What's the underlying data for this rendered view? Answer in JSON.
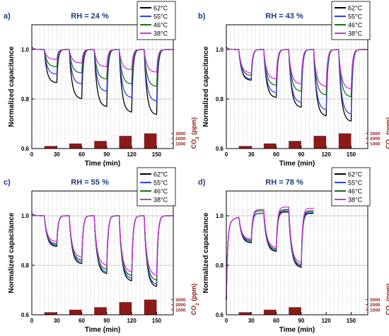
{
  "colors": {
    "62C": "#000000",
    "55C": "#3344dd",
    "46C": "#1f6b1f",
    "38C": "#cc33dd",
    "co2_bar": "#8b1a1a",
    "co2_axis": "#8b1a1a"
  },
  "chart_data": [
    {
      "type": "line",
      "panel_label": "a)",
      "title": "RH = 24 %",
      "xlabel": "Time (min)",
      "ylabel": "Normalized capacitance",
      "y2label": "CO2 (ppm)",
      "xlim": [
        0,
        170
      ],
      "ylim": [
        0.6,
        1.1
      ],
      "xticks": [
        0,
        30,
        60,
        90,
        120,
        150
      ],
      "yticks": [
        "0.6",
        "0.8",
        "1.0"
      ],
      "y2ticks": [
        "1000",
        "2000",
        "3000"
      ],
      "grid": true,
      "legend_position": "top-right",
      "co2_pulses": [
        {
          "start": 15,
          "end": 30,
          "ppm": 500
        },
        {
          "start": 45,
          "end": 60,
          "ppm": 1000
        },
        {
          "start": 75,
          "end": 90,
          "ppm": 1500
        },
        {
          "start": 105,
          "end": 120,
          "ppm": 2500
        },
        {
          "start": 135,
          "end": 150,
          "ppm": 3000
        }
      ],
      "series": [
        {
          "name": "62°C",
          "color_key": "62C",
          "dips": [
            0.865,
            0.8,
            0.768,
            0.745,
            0.735
          ]
        },
        {
          "name": "55°C",
          "color_key": "55C",
          "dips": [
            0.9,
            0.86,
            0.83,
            0.805,
            0.79
          ]
        },
        {
          "name": "46°C",
          "color_key": "46C",
          "dips": [
            0.93,
            0.905,
            0.88,
            0.86,
            0.85
          ]
        },
        {
          "name": "38°C",
          "color_key": "38C",
          "dips": [
            0.96,
            0.945,
            0.93,
            0.918,
            0.908
          ]
        }
      ]
    },
    {
      "type": "line",
      "panel_label": "b)",
      "title": "RH = 43 %",
      "xlabel": "Time (min)",
      "ylabel": "Normalized capacitance",
      "y2label": "CO2 (ppm)",
      "xlim": [
        0,
        170
      ],
      "ylim": [
        0.6,
        1.1
      ],
      "xticks": [
        0,
        30,
        60,
        90,
        120,
        150
      ],
      "yticks": [
        "0.6",
        "0.8",
        "1.0"
      ],
      "y2ticks": [
        "1000",
        "2000",
        "3000"
      ],
      "grid": true,
      "legend_position": "top-right",
      "co2_pulses": [
        {
          "start": 15,
          "end": 30,
          "ppm": 500
        },
        {
          "start": 45,
          "end": 60,
          "ppm": 1000
        },
        {
          "start": 75,
          "end": 90,
          "ppm": 1500
        },
        {
          "start": 105,
          "end": 120,
          "ppm": 2500
        },
        {
          "start": 135,
          "end": 150,
          "ppm": 3000
        }
      ],
      "series": [
        {
          "name": "62°C",
          "color_key": "62C",
          "dips": [
            0.875,
            0.805,
            0.765,
            0.73,
            0.708
          ]
        },
        {
          "name": "55°C",
          "color_key": "55C",
          "dips": [
            0.88,
            0.825,
            0.785,
            0.755,
            0.738
          ]
        },
        {
          "name": "46°C",
          "color_key": "46C",
          "dips": [
            0.895,
            0.855,
            0.83,
            0.815,
            0.808
          ]
        },
        {
          "name": "38°C",
          "color_key": "38C",
          "dips": [
            0.905,
            0.88,
            0.86,
            0.85,
            0.84
          ]
        }
      ]
    },
    {
      "type": "line",
      "panel_label": "c)",
      "title": "RH = 55 %",
      "xlabel": "Time (min)",
      "ylabel": "Normalized capacitance",
      "y2label": "CO2 (ppm)",
      "xlim": [
        0,
        170
      ],
      "ylim": [
        0.6,
        1.1
      ],
      "xticks": [
        0,
        30,
        60,
        90,
        120,
        150
      ],
      "yticks": [
        "0.6",
        "0.8",
        "1.0"
      ],
      "y2ticks": [
        "1000",
        "2000",
        "3000"
      ],
      "grid": true,
      "legend_position": "top-right",
      "co2_pulses": [
        {
          "start": 15,
          "end": 30,
          "ppm": 500
        },
        {
          "start": 45,
          "end": 60,
          "ppm": 1000
        },
        {
          "start": 75,
          "end": 90,
          "ppm": 1500
        },
        {
          "start": 105,
          "end": 120,
          "ppm": 2500
        },
        {
          "start": 135,
          "end": 150,
          "ppm": 3000
        }
      ],
      "series": [
        {
          "name": "62°C",
          "color_key": "62C",
          "dips": [
            0.875,
            0.805,
            0.765,
            0.735,
            0.712
          ]
        },
        {
          "name": "55°C",
          "color_key": "55C",
          "dips": [
            0.88,
            0.812,
            0.772,
            0.745,
            0.722
          ]
        },
        {
          "name": "46°C",
          "color_key": "46C",
          "dips": [
            0.885,
            0.82,
            0.782,
            0.756,
            0.738
          ]
        },
        {
          "name": "38°C",
          "color_key": "38C",
          "dips": [
            0.895,
            0.832,
            0.8,
            0.772,
            0.758
          ]
        }
      ]
    },
    {
      "type": "line",
      "panel_label": "d)",
      "title": "RH = 78 %",
      "xlabel": "Time (min)",
      "ylabel": "Normalized capacitance",
      "y2label": "CO2 (ppm)",
      "xlim": [
        0,
        170
      ],
      "ylim": [
        0.6,
        1.1
      ],
      "xticks": [
        0,
        30,
        60,
        90,
        120,
        150
      ],
      "yticks": [
        "0.6",
        "0.8",
        "1.0"
      ],
      "y2ticks": [
        "1000",
        "2000",
        "3000"
      ],
      "grid": true,
      "legend_position": "top-right",
      "co2_pulses": [
        {
          "start": 15,
          "end": 30,
          "ppm": 500
        },
        {
          "start": 45,
          "end": 60,
          "ppm": 1000
        },
        {
          "start": 75,
          "end": 90,
          "ppm": 1500
        }
      ],
      "end_time": 105,
      "baselines": [
        [
          1.0,
          1.01,
          1.015,
          1.01
        ],
        [
          1.0,
          1.01,
          1.02,
          1.015
        ],
        [
          1.0,
          1.02,
          1.025,
          1.02
        ],
        [
          1.0,
          1.025,
          1.035,
          1.03
        ]
      ],
      "series": [
        {
          "name": "62°C",
          "color_key": "62C",
          "dips": [
            0.89,
            0.855,
            0.79
          ]
        },
        {
          "name": "55°C",
          "color_key": "55C",
          "dips": [
            0.895,
            0.86,
            0.795
          ]
        },
        {
          "name": "46°C",
          "color_key": "46C",
          "dips": [
            0.9,
            0.865,
            0.8
          ]
        },
        {
          "name": "38°C",
          "color_key": "38C",
          "dips": [
            0.905,
            0.872,
            0.81
          ]
        }
      ]
    }
  ]
}
